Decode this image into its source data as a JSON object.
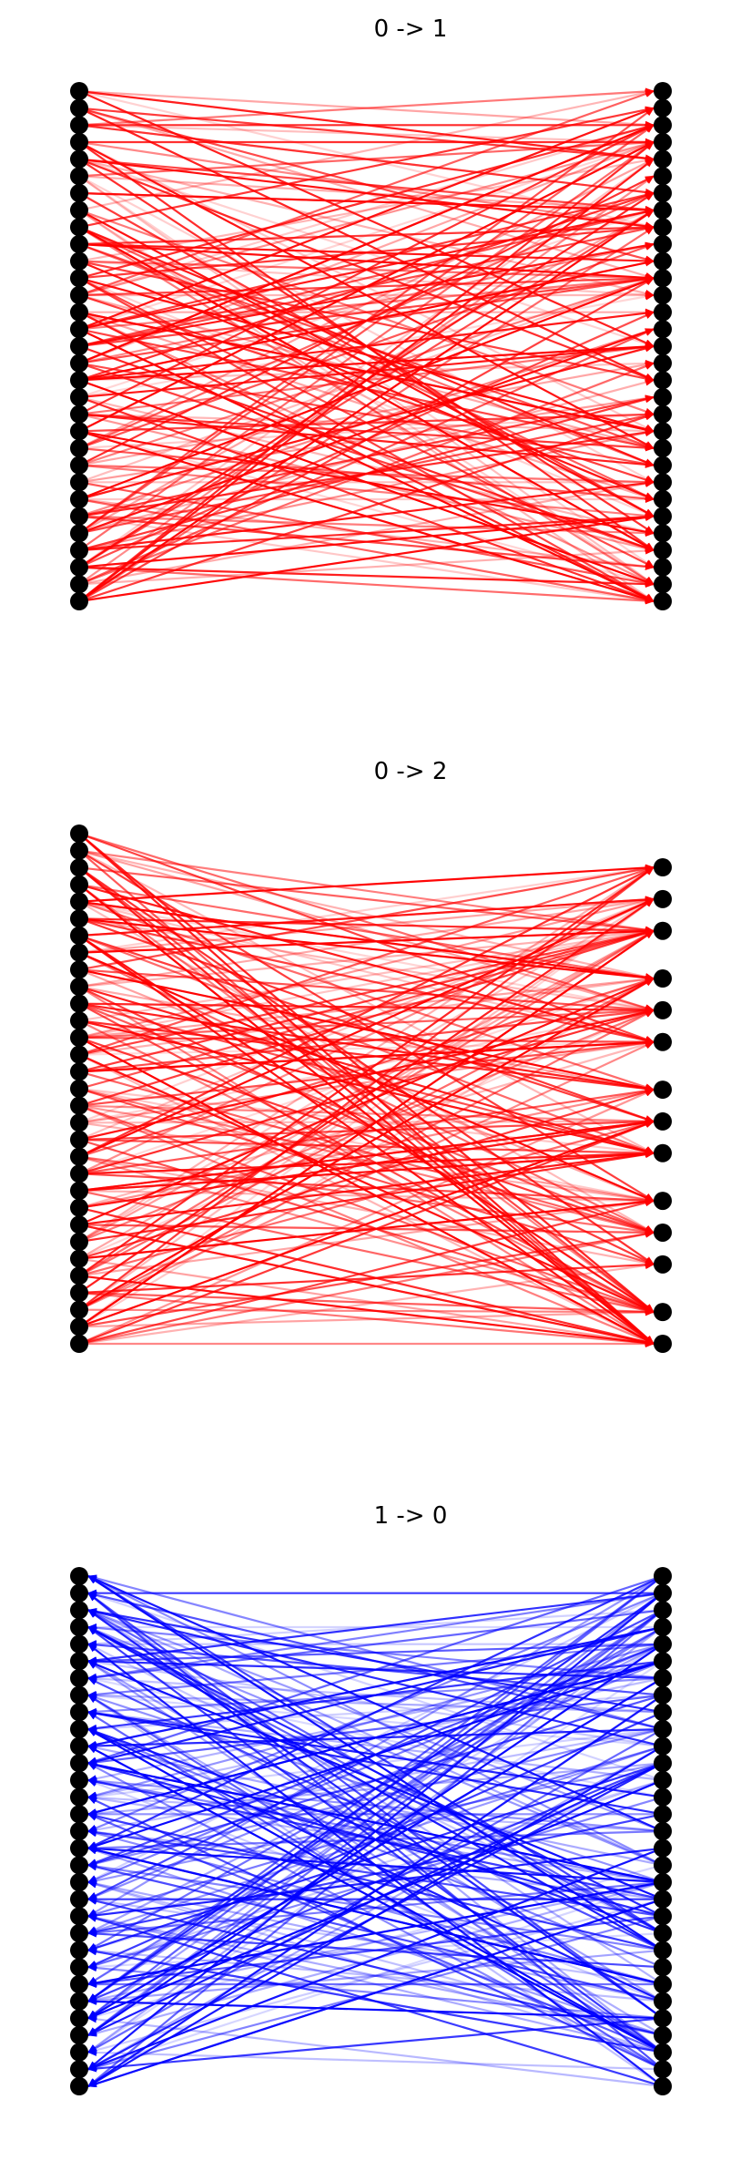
{
  "panels": [
    {
      "title": "0 -> 1",
      "edge_color": "#ff0000",
      "arrow_direction": "left-to-right",
      "left_nodes": 31,
      "right_nodes": 31,
      "right_gaps": []
    },
    {
      "title": "0 -> 2",
      "edge_color": "#ff0000",
      "arrow_direction": "left-to-right",
      "left_nodes": 31,
      "right_nodes": 14,
      "right_gaps": [
        3,
        6,
        9,
        12
      ]
    },
    {
      "title": "1 -> 0",
      "edge_color": "#0000ff",
      "arrow_direction": "right-to-left",
      "left_nodes": 31,
      "right_nodes": 31,
      "right_gaps": []
    }
  ],
  "node_color": "#000000"
}
